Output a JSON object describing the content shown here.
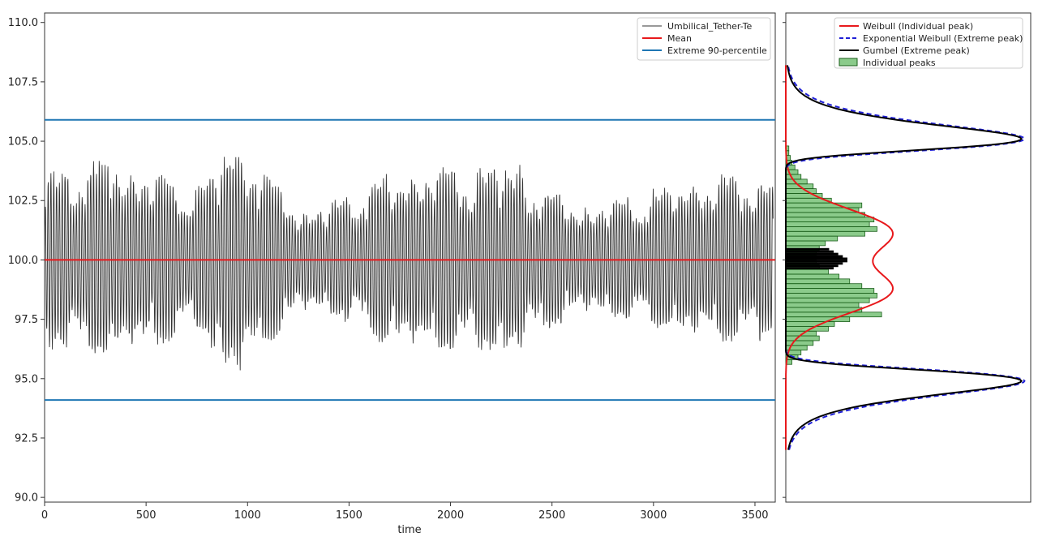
{
  "chart_data": [
    {
      "type": "line",
      "panel": "time-series",
      "xlabel": "time",
      "ylabel": "",
      "xlim": [
        0,
        3600
      ],
      "ylim": [
        89.8,
        110.4
      ],
      "x_ticks": [
        0,
        500,
        1000,
        1500,
        2000,
        2500,
        3000,
        3500
      ],
      "x_tick_labels": [
        "0",
        "500",
        "1000",
        "1500",
        "2000",
        "2500",
        "3000",
        "3500"
      ],
      "y_ticks": [
        90.0,
        92.5,
        95.0,
        97.5,
        100.0,
        102.5,
        105.0,
        107.5,
        110.0
      ],
      "y_tick_labels": [
        "90.0",
        "92.5",
        "95.0",
        "97.5",
        "100.0",
        "102.5",
        "105.0",
        "107.5",
        "110.0"
      ],
      "legend_position": "top-right",
      "grid": false,
      "series": [
        {
          "name": "Umbilical_Tether-Te",
          "color": "#333333",
          "mean": 100.0,
          "approx_period_s": 14,
          "x": [
            0,
            150,
            350,
            420,
            600,
            780,
            900,
            915,
            930,
            1100,
            1300,
            1650,
            1900,
            2160,
            2330,
            2400,
            2700,
            3000,
            3380,
            3580
          ],
          "y": [
            96.0,
            95.9,
            104.5,
            96.2,
            96.3,
            103.3,
            95.0,
            105.2,
            94.8,
            96.3,
            102.0,
            103.6,
            96.0,
            95.9,
            104.2,
            96.6,
            102.2,
            96.9,
            103.7,
            96.4
          ]
        },
        {
          "name": "Mean",
          "color": "#e8191c",
          "y": 100.0
        },
        {
          "name": "Extreme 90-percentile",
          "color": "#1f77b4",
          "upper": 105.9,
          "lower": 94.1
        }
      ]
    },
    {
      "type": "histogram",
      "panel": "distribution",
      "orientation": "horizontal",
      "legend_position": "top-right",
      "grid": false,
      "series": [
        {
          "name": "Weibull (Individual peak)",
          "color": "#e8191c",
          "modes": [
            101.2,
            98.7
          ],
          "peak_density": 0.68
        },
        {
          "name": "Exponential Weibull (Extreme peak)",
          "color": "#1f1fd6",
          "style": "dashed",
          "modes": [
            105.1,
            94.9
          ],
          "peak_density": 1.57
        },
        {
          "name": "Gumbel (Extreme peak)",
          "color": "#000000",
          "modes": [
            105.1,
            94.9
          ],
          "peak_density": 1.55
        },
        {
          "name": "Individual peaks",
          "color": "#2ca02c",
          "bins": [
            95.6,
            95.8,
            96.0,
            96.2,
            96.4,
            96.6,
            96.8,
            97.0,
            97.2,
            97.4,
            97.6,
            97.8,
            98.0,
            98.2,
            98.4,
            98.6,
            98.8,
            99.0,
            99.2,
            99.4,
            99.6,
            99.8,
            100.0,
            100.2,
            100.4,
            100.6,
            100.8,
            101.0,
            101.2,
            101.4,
            101.6,
            101.8,
            102.0,
            102.2,
            102.4,
            102.6,
            102.8,
            103.0,
            103.2,
            103.4,
            103.6,
            103.8,
            104.0,
            104.2,
            104.4,
            104.6
          ],
          "density": [
            0.04,
            0.08,
            0.1,
            0.14,
            0.18,
            0.22,
            0.2,
            0.28,
            0.32,
            0.42,
            0.63,
            0.5,
            0.48,
            0.55,
            0.6,
            0.58,
            0.5,
            0.42,
            0.35,
            0.28,
            0.22,
            0.2,
            0.2,
            0.2,
            0.22,
            0.26,
            0.34,
            0.52,
            0.6,
            0.55,
            0.58,
            0.52,
            0.48,
            0.5,
            0.3,
            0.24,
            0.2,
            0.18,
            0.14,
            0.1,
            0.08,
            0.06,
            0.04,
            0.03,
            0.02,
            0.02
          ]
        }
      ]
    }
  ]
}
